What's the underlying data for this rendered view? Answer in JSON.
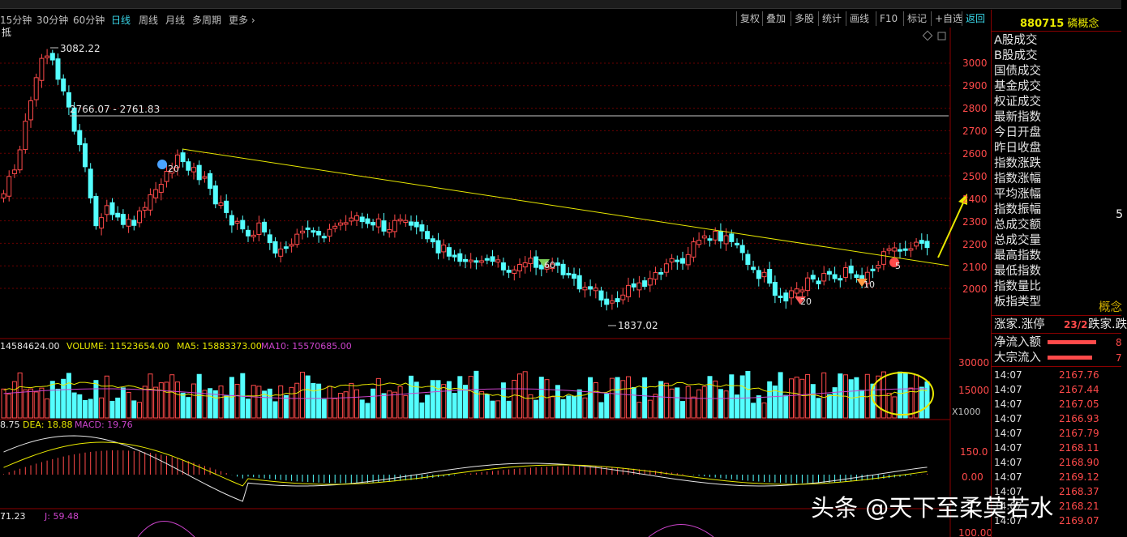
{
  "toolbar": {
    "periods": [
      {
        "label": "15分钟",
        "active": false
      },
      {
        "label": "30分钟",
        "active": false
      },
      {
        "label": "60分钟",
        "active": false
      },
      {
        "label": "日线",
        "active": true
      },
      {
        "label": "周线",
        "active": false
      },
      {
        "label": "月线",
        "active": false
      },
      {
        "label": "多周期",
        "active": false
      },
      {
        "label": "更多 ›",
        "active": false
      }
    ],
    "buttons": [
      "复权",
      "叠加",
      "多股",
      "统计",
      "画线",
      "F10",
      "标记",
      "+自选",
      "返回"
    ]
  },
  "main_chart": {
    "indicator_label": "抵",
    "high_label": "3082.22",
    "resistance_label": "2766.07 - 2761.83",
    "low_label": "1837.02",
    "price_axis": [
      "3000",
      "2900",
      "2800",
      "2700",
      "2600",
      "2500",
      "2400",
      "2300",
      "2200",
      "2100",
      "2000"
    ],
    "marker_labels": [
      "20",
      "60",
      "20",
      "10",
      "5"
    ]
  },
  "volume_panel": {
    "vol_prefix": "14584624.00",
    "volume_label": "VOLUME: 11523654.00",
    "ma5_label": "MA5: 15883373.00",
    "ma10_label": "MA10: 15570685.00",
    "axis": [
      "30000",
      "15000"
    ],
    "unit": "X1000"
  },
  "macd_panel": {
    "dif_tail": "8.75",
    "dea_label": "DEA: 18.88",
    "macd_label": "MACD: 19.76",
    "axis": [
      "150.0",
      "0.00"
    ]
  },
  "kdj_panel": {
    "k_tail": "71.23",
    "j_label": "J: 59.48",
    "axis": [
      "100.00"
    ]
  },
  "sidebar": {
    "code": "880715",
    "name": "磷概念",
    "labels": [
      "A股成交",
      "B股成交",
      "国债成交",
      "基金成交",
      "权证成交",
      "最新指数",
      "今日开盘",
      "昨日收盘",
      "指数涨跌",
      "指数涨幅",
      "平均涨幅",
      "指数振幅",
      "总成交额",
      "总成交量",
      "最高指数",
      "最低指数",
      "指数量比",
      "板指类型"
    ],
    "value_5": "5",
    "type_value": "概念",
    "updown_label": "涨家.涨停",
    "updown_value": "23/2",
    "down_label": "跌家.跌",
    "net_inflow_label": "净流入额",
    "net_inflow_value": "8",
    "bulk_inflow_label": "大宗流入",
    "bulk_inflow_value": "7",
    "ticks": [
      {
        "time": "14:07",
        "price": "2167.76"
      },
      {
        "time": "14:07",
        "price": "2167.44"
      },
      {
        "time": "14:07",
        "price": "2167.05"
      },
      {
        "time": "14:07",
        "price": "2166.93"
      },
      {
        "time": "14:07",
        "price": "2167.79"
      },
      {
        "time": "14:07",
        "price": "2168.11"
      },
      {
        "time": "14:07",
        "price": "2168.90"
      },
      {
        "time": "14:07",
        "price": "2169.12"
      },
      {
        "time": "14:07",
        "price": "2168.37"
      },
      {
        "time": "14:07",
        "price": "2168.21"
      },
      {
        "time": "14:07",
        "price": "2169.07"
      }
    ]
  },
  "watermark": "头条 @天下至柔莫若水",
  "colors": {
    "up": "#ff4a4a",
    "down": "#54ffff",
    "trend": "#e8e800",
    "accent": "#38d6e8",
    "bg": "#000000"
  }
}
